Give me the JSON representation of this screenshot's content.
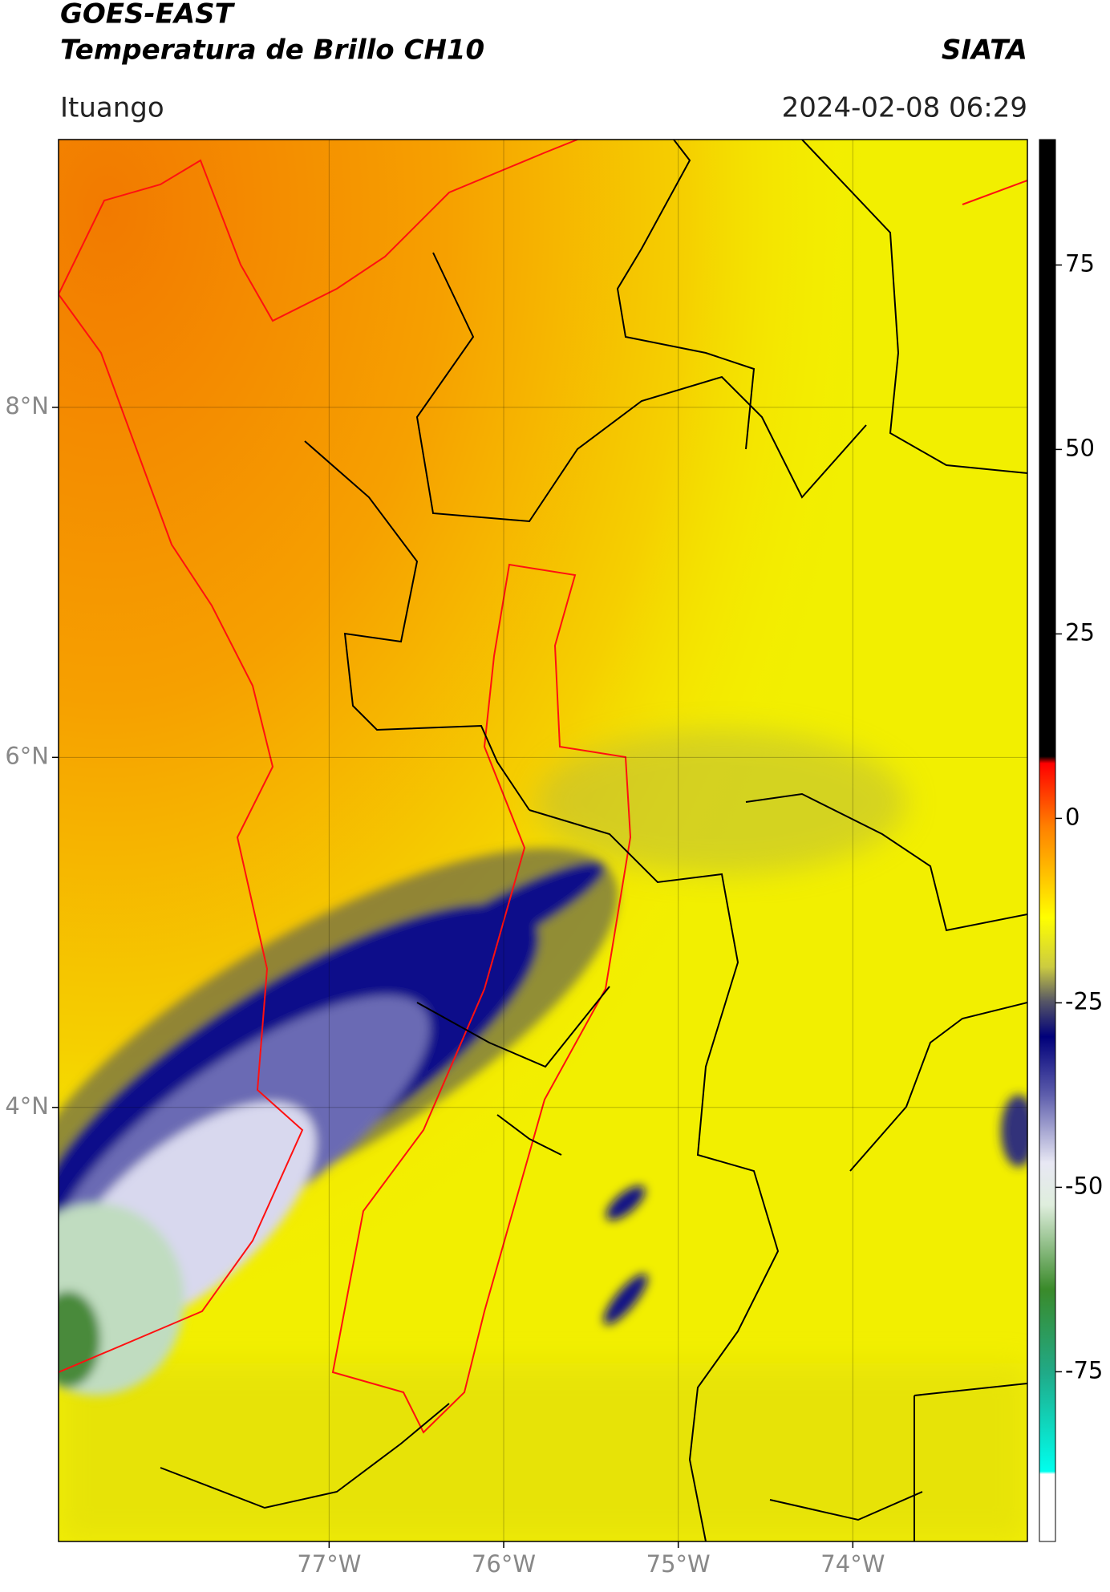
{
  "header": {
    "title": "GOES-EAST",
    "subtitle": "Temperatura de Brillo CH10",
    "source": "SIATA",
    "location": "Ituango",
    "datetime": "2024-02-08 06:29"
  },
  "map": {
    "xlim": [
      -78.55,
      -73.0
    ],
    "ylim": [
      1.52,
      9.53
    ],
    "xticks": [
      {
        "value": -77,
        "label": "77°W"
      },
      {
        "value": -76,
        "label": "76°W"
      },
      {
        "value": -75,
        "label": "75°W"
      },
      {
        "value": -74,
        "label": "74°W"
      }
    ],
    "yticks": [
      {
        "value": 8,
        "label": "8°N"
      },
      {
        "value": 6,
        "label": "6°N"
      },
      {
        "value": 4,
        "label": "4°N"
      }
    ],
    "grid": true
  },
  "colorbar": {
    "lim": [
      -98,
      92
    ],
    "ticks": [
      75,
      50,
      25,
      0,
      -25,
      -50,
      -75
    ]
  }
}
